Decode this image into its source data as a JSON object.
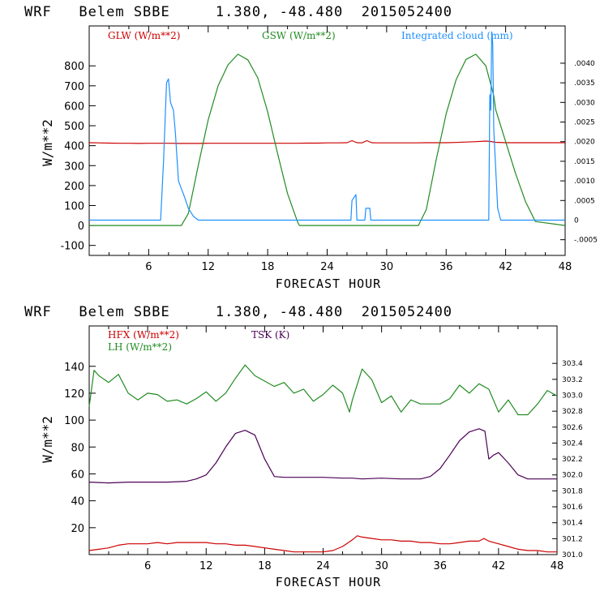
{
  "chart_data": [
    {
      "type": "line",
      "title": "WRF   Belem SBBE     1.380, -48.480  2015052400",
      "xlabel": "FORECAST HOUR",
      "ylabel": "W/m**2",
      "xlim": [
        0,
        48
      ],
      "ylim": [
        -150,
        1000
      ],
      "xticks": [
        6,
        12,
        18,
        24,
        30,
        36,
        42,
        48
      ],
      "yticks": [
        -100,
        0,
        100,
        200,
        300,
        400,
        500,
        600,
        700,
        800
      ],
      "y2lim": [
        -0.0009,
        0.00495
      ],
      "y2ticks": [
        {
          "v": -0.0005,
          "label": "-.0005"
        },
        {
          "v": 0,
          "label": "0"
        },
        {
          "v": 0.0005,
          "label": ".0005"
        },
        {
          "v": 0.001,
          "label": ".0010"
        },
        {
          "v": 0.0015,
          "label": ".0015"
        },
        {
          "v": 0.002,
          "label": ".0020"
        },
        {
          "v": 0.0025,
          "label": ".0025"
        },
        {
          "v": 0.003,
          "label": ".0030"
        },
        {
          "v": 0.0035,
          "label": ".0035"
        },
        {
          "v": 0.004,
          "label": ".0040"
        }
      ],
      "series": [
        {
          "name": "GLW (W/m**2)",
          "axis": "left",
          "color": "#cc0000",
          "x": [
            0,
            1,
            2,
            3,
            4,
            5,
            6,
            7,
            8,
            9,
            10,
            11,
            12,
            13,
            14,
            15,
            16,
            17,
            18,
            19,
            20,
            21,
            22,
            23,
            24,
            25,
            26,
            26.5,
            27,
            27.5,
            28,
            28.5,
            29,
            30,
            31,
            32,
            33,
            34,
            35,
            36,
            37,
            38,
            39,
            40,
            40.5,
            41,
            42,
            43,
            44,
            45,
            46,
            47,
            48
          ],
          "y": [
            415,
            414,
            413,
            412,
            412,
            411,
            412,
            412,
            412,
            411,
            411,
            411,
            412,
            412,
            412,
            412,
            412,
            412,
            412,
            412,
            412,
            412,
            413,
            413,
            414,
            414,
            415,
            425,
            415,
            414,
            425,
            415,
            414,
            414,
            414,
            414,
            414,
            415,
            415,
            415,
            416,
            418,
            420,
            423,
            421,
            417,
            415,
            415,
            415,
            415,
            415,
            415,
            415
          ]
        },
        {
          "name": "GSW (W/m**2)",
          "axis": "left",
          "color": "#228b22",
          "x": [
            0,
            9.3,
            10,
            11,
            12,
            13,
            14,
            15,
            16,
            17,
            18,
            19,
            20,
            21,
            21.2,
            33.2,
            34,
            35,
            36,
            37,
            38,
            39,
            40,
            40.8,
            41,
            42,
            43,
            44,
            45,
            48
          ],
          "y": [
            0,
            0,
            60,
            300,
            530,
            700,
            805,
            858,
            830,
            740,
            570,
            360,
            160,
            20,
            0,
            0,
            80,
            330,
            560,
            730,
            832,
            858,
            800,
            650,
            580,
            420,
            260,
            120,
            20,
            0
          ]
        },
        {
          "name": "Integrated cloud (mm)",
          "axis": "right",
          "color": "#1e90ff",
          "x": [
            0,
            7.2,
            7.5,
            7.8,
            8.0,
            8.2,
            8.5,
            8.7,
            9.0,
            9.3,
            9.6,
            10.0,
            10.5,
            11.0,
            26.4,
            26.5,
            26.9,
            27.0,
            27.8,
            27.9,
            28.3,
            28.4,
            40.3,
            40.4,
            40.5,
            40.6,
            40.7,
            40.8,
            41.0,
            41.2,
            41.5,
            48
          ],
          "y": [
            0,
            0,
            0.0015,
            0.0035,
            0.0036,
            0.003,
            0.0028,
            0.0022,
            0.001,
            0.0008,
            0.0006,
            0.0003,
            0.0001,
            0,
            0,
            0.0005,
            0.00065,
            0,
            0,
            0.0003,
            0.0003,
            0,
            0,
            0.0032,
            0.0028,
            0.0048,
            0.0045,
            0.0023,
            0.0013,
            0.0003,
            0,
            0
          ]
        }
      ]
    },
    {
      "type": "line",
      "title": "WRF   Belem SBBE     1.380, -48.480  2015052400",
      "xlabel": "FORECAST HOUR",
      "ylabel": "W/m**2",
      "xlim": [
        0,
        48
      ],
      "ylim": [
        0,
        170
      ],
      "xticks": [
        6,
        12,
        18,
        24,
        30,
        36,
        42,
        48
      ],
      "yticks": [
        20,
        40,
        60,
        80,
        100,
        120,
        140
      ],
      "y2lim": [
        301.0,
        303.87
      ],
      "y2ticks": [
        {
          "v": 301.0,
          "label": "301.0"
        },
        {
          "v": 301.2,
          "label": "301.2"
        },
        {
          "v": 301.4,
          "label": "301.4"
        },
        {
          "v": 301.6,
          "label": "301.6"
        },
        {
          "v": 301.8,
          "label": "301.8"
        },
        {
          "v": 302.0,
          "label": "302.0"
        },
        {
          "v": 302.2,
          "label": "302.2"
        },
        {
          "v": 302.4,
          "label": "302.4"
        },
        {
          "v": 302.6,
          "label": "302.6"
        },
        {
          "v": 302.8,
          "label": "302.8"
        },
        {
          "v": 303.0,
          "label": "303.0"
        },
        {
          "v": 303.2,
          "label": "303.2"
        },
        {
          "v": 303.4,
          "label": "303.4"
        }
      ],
      "series": [
        {
          "name": "HFX (W/m**2)",
          "axis": "left",
          "color": "#cc0000",
          "x": [
            0,
            1,
            2,
            3,
            4,
            5,
            6,
            7,
            8,
            9,
            10,
            11,
            12,
            13,
            14,
            15,
            16,
            17,
            18,
            19,
            20,
            21,
            22,
            23,
            24,
            25,
            26,
            27,
            27.5,
            28,
            29,
            30,
            31,
            32,
            33,
            34,
            35,
            36,
            37,
            38,
            39,
            40,
            40.5,
            41,
            42,
            43,
            44,
            45,
            46,
            47,
            48
          ],
          "y": [
            3,
            4,
            5,
            7,
            8,
            8,
            8,
            9,
            8,
            9,
            9,
            9,
            9,
            8,
            8,
            7,
            7,
            6,
            5,
            4,
            3,
            2,
            2,
            2,
            2,
            3,
            6,
            11,
            14,
            13,
            12,
            11,
            11,
            10,
            10,
            9,
            9,
            8,
            8,
            9,
            10,
            10,
            12,
            10,
            8,
            6,
            4,
            3,
            3,
            2,
            2
          ]
        },
        {
          "name": "LH  (W/m**2)",
          "axis": "left",
          "color": "#228b22",
          "x": [
            0,
            0.5,
            1,
            2,
            3,
            4,
            5,
            6,
            7,
            8,
            9,
            10,
            11,
            12,
            13,
            14,
            15,
            16,
            17,
            18,
            19,
            20,
            21,
            22,
            23,
            24,
            25,
            26,
            26.7,
            27,
            28,
            29,
            30,
            31,
            32,
            33,
            34,
            35,
            36,
            37,
            38,
            39,
            40,
            41,
            42,
            43,
            44,
            45,
            46,
            47,
            48
          ],
          "y": [
            110,
            137,
            133,
            128,
            134,
            120,
            115,
            120,
            119,
            114,
            115,
            112,
            116,
            121,
            114,
            120,
            131,
            141,
            133,
            129,
            125,
            128,
            120,
            123,
            114,
            119,
            126,
            120,
            106,
            115,
            138,
            130,
            113,
            118,
            106,
            115,
            112,
            112,
            112,
            116,
            126,
            120,
            127,
            123,
            106,
            115,
            104,
            104,
            112,
            122,
            118
          ]
        },
        {
          "name": "TSK (K)",
          "axis": "right",
          "color": "#4b0055",
          "x": [
            0,
            2,
            4,
            6,
            8,
            10,
            11,
            12,
            13,
            14,
            15,
            16,
            17,
            18,
            19,
            20,
            22,
            24,
            26,
            27,
            28,
            30,
            32,
            34,
            35,
            36,
            37,
            38,
            39,
            40,
            40.6,
            41,
            41.5,
            42,
            43,
            44,
            45,
            46,
            48
          ],
          "y": [
            301.91,
            301.9,
            301.91,
            301.91,
            301.91,
            301.92,
            301.95,
            302.0,
            302.15,
            302.35,
            302.52,
            302.56,
            302.5,
            302.2,
            301.98,
            301.97,
            301.97,
            301.97,
            301.96,
            301.96,
            301.95,
            301.96,
            301.95,
            301.95,
            301.98,
            302.08,
            302.25,
            302.43,
            302.54,
            302.58,
            302.55,
            302.2,
            302.25,
            302.28,
            302.15,
            302.0,
            301.95,
            301.95,
            301.95
          ]
        }
      ]
    }
  ]
}
